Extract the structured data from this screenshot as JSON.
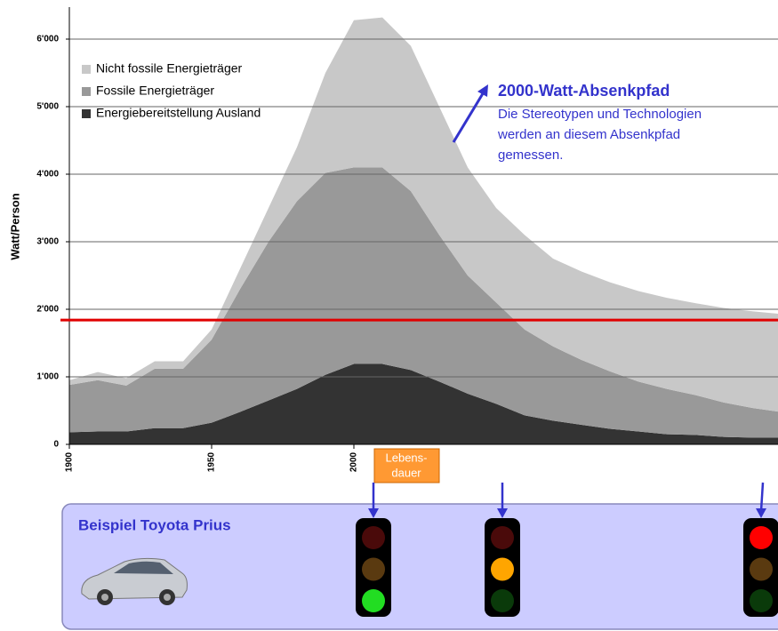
{
  "chart_data": {
    "type": "stacked_area",
    "ylabel": "Watt/Person",
    "x": [
      1900,
      1910,
      1920,
      1930,
      1940,
      1950,
      1960,
      1970,
      1980,
      1990,
      2000,
      2010,
      2020,
      2030,
      2040,
      2050,
      2060,
      2070,
      2080,
      2090,
      2100,
      2110,
      2120,
      2130,
      2140,
      2150
    ],
    "xlim": [
      1900,
      2149
    ],
    "xticks": [
      1900,
      1950,
      2000
    ],
    "ylim": [
      0,
      6500
    ],
    "yticks": [
      0,
      {
        "value": 1000,
        "label": "1'000"
      },
      {
        "value": 2000,
        "label": "2'000"
      },
      {
        "value": 3000,
        "label": "3'000"
      },
      {
        "value": 4000,
        "label": "4'000"
      },
      {
        "value": 5000,
        "label": "5'000"
      },
      {
        "value": 6000,
        "label": "6'000"
      }
    ],
    "grid": true,
    "legend": "upper left",
    "series": [
      {
        "name": "Energiebereitstellung Ausland",
        "color": "#333333",
        "values": [
          180,
          190,
          190,
          240,
          240,
          320,
          480,
          650,
          820,
          1030,
          1190,
          1190,
          1100,
          930,
          750,
          600,
          430,
          350,
          290,
          230,
          190,
          150,
          140,
          110,
          100,
          100
        ]
      },
      {
        "name": "Fossile Energieträger",
        "color": "#999999",
        "values": [
          700,
          760,
          680,
          880,
          880,
          1230,
          1820,
          2350,
          2780,
          2990,
          2910,
          2910,
          2650,
          2170,
          1750,
          1500,
          1270,
          1100,
          960,
          850,
          740,
          670,
          590,
          510,
          440,
          380
        ]
      },
      {
        "name": "Nicht fossile Energieträger",
        "color": "#c8c8c8",
        "values": [
          70,
          120,
          110,
          110,
          110,
          150,
          300,
          500,
          800,
          1480,
          2180,
          2220,
          2150,
          1900,
          1600,
          1400,
          1400,
          1300,
          1310,
          1320,
          1340,
          1350,
          1360,
          1400,
          1430,
          1450
        ]
      }
    ],
    "reference_line": {
      "value": 1840,
      "color": "#e00000"
    },
    "annotation": {
      "title": "2000-Watt-Absenkpfad",
      "lines": [
        "Die Stereotypen und Technologien",
        "werden an diesem Absenkpfad",
        "gemessen."
      ],
      "color": "#3333cc"
    }
  },
  "panel": {
    "title": "Beispiel Toyota Prius",
    "lifetime_label": [
      "Lebens-",
      "dauer"
    ],
    "lights": [
      "green",
      "amber",
      "red"
    ]
  }
}
